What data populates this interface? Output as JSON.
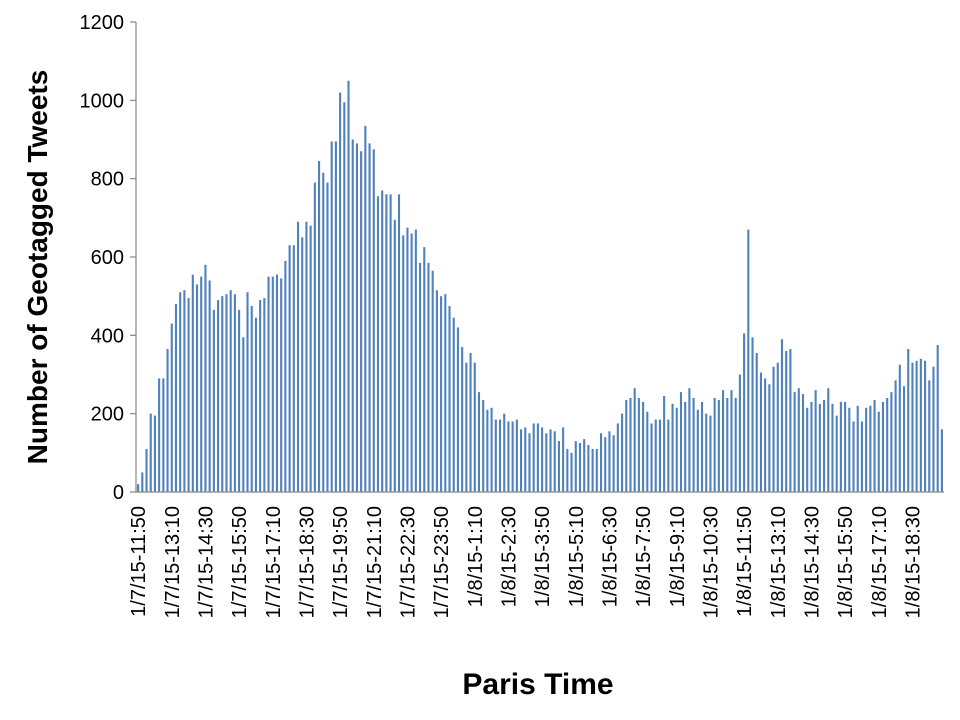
{
  "chart_data": {
    "type": "bar",
    "title": "",
    "xlabel": "Paris Time",
    "ylabel": "Number of Geotagged Tweets",
    "ylim": [
      0,
      1200
    ],
    "yticks": [
      0,
      200,
      400,
      600,
      800,
      1000,
      1200
    ],
    "grid": false,
    "legend": "none",
    "bar_color": "#4f81bd",
    "x_tick_labels": [
      "1/7/15-11:50",
      "1/7/15-13:10",
      "1/7/15-14:30",
      "1/7/15-15:50",
      "1/7/15-17:10",
      "1/7/15-18:30",
      "1/7/15-19:50",
      "1/7/15-21:10",
      "1/7/15-22:30",
      "1/7/15-23:50",
      "1/8/15-1:10",
      "1/8/15-2:30",
      "1/8/15-3:50",
      "1/8/15-5:10",
      "1/8/15-6:30",
      "1/8/15-7:50",
      "1/8/15-9:10",
      "1/8/15-10:30",
      "1/8/15-11:50",
      "1/8/15-13:10",
      "1/8/15-14:30",
      "1/8/15-15:50",
      "1/8/15-17:10",
      "1/8/15-18:30"
    ],
    "tick_every": 8,
    "values": [
      20,
      50,
      110,
      200,
      195,
      290,
      290,
      365,
      430,
      480,
      510,
      515,
      495,
      555,
      530,
      550,
      580,
      540,
      465,
      490,
      500,
      505,
      515,
      505,
      465,
      395,
      510,
      475,
      445,
      490,
      495,
      550,
      550,
      555,
      545,
      590,
      630,
      630,
      690,
      650,
      690,
      680,
      790,
      845,
      815,
      790,
      895,
      895,
      1020,
      995,
      1050,
      900,
      890,
      870,
      935,
      890,
      875,
      755,
      770,
      760,
      760,
      695,
      760,
      655,
      675,
      660,
      670,
      585,
      625,
      585,
      565,
      515,
      500,
      505,
      475,
      445,
      420,
      370,
      330,
      355,
      330,
      255,
      235,
      210,
      215,
      185,
      185,
      200,
      180,
      180,
      185,
      160,
      165,
      150,
      175,
      175,
      165,
      150,
      160,
      155,
      130,
      165,
      110,
      100,
      130,
      125,
      135,
      120,
      110,
      110,
      150,
      140,
      155,
      145,
      175,
      200,
      235,
      240,
      265,
      240,
      230,
      205,
      175,
      185,
      185,
      245,
      185,
      225,
      215,
      255,
      230,
      265,
      240,
      210,
      230,
      200,
      195,
      240,
      235,
      260,
      240,
      260,
      240,
      300,
      405,
      670,
      395,
      355,
      305,
      290,
      275,
      320,
      330,
      390,
      360,
      365,
      255,
      265,
      250,
      215,
      230,
      260,
      225,
      235,
      265,
      225,
      195,
      230,
      230,
      215,
      180,
      220,
      180,
      215,
      220,
      235,
      205,
      230,
      240,
      255,
      285,
      325,
      270,
      365,
      330,
      335,
      340,
      335,
      285,
      320,
      375,
      160
    ]
  }
}
